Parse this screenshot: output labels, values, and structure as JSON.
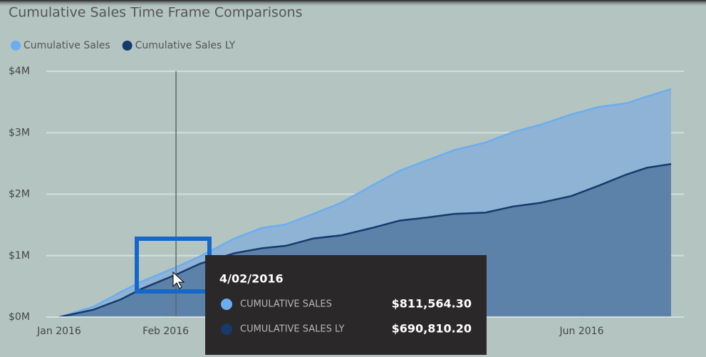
{
  "chart_data": {
    "type": "area",
    "title": "Cumulative Sales Time Frame Comparisons",
    "x": [
      "2016-01-01",
      "2016-01-11",
      "2016-01-19",
      "2016-01-25",
      "2016-02-04",
      "2016-02-11",
      "2016-02-21",
      "2016-02-29",
      "2016-03-07",
      "2016-03-15",
      "2016-03-23",
      "2016-04-01",
      "2016-04-09",
      "2016-04-17",
      "2016-04-25",
      "2016-05-04",
      "2016-05-12",
      "2016-05-20",
      "2016-05-29",
      "2016-06-06",
      "2016-06-14",
      "2016-06-20",
      "2016-06-27"
    ],
    "series": [
      {
        "name": "Cumulative Sales",
        "color": "#6aaef0",
        "fill": "#8fb3d4",
        "values": [
          0,
          170000,
          410000,
          580000,
          811564.3,
          990000,
          1280000,
          1450000,
          1510000,
          1680000,
          1860000,
          2140000,
          2380000,
          2550000,
          2720000,
          2840000,
          3010000,
          3130000,
          3300000,
          3420000,
          3480000,
          3590000,
          3710000
        ]
      },
      {
        "name": "Cumulative Sales LY",
        "color": "#163a6a",
        "fill": "#5d82aa",
        "values": [
          0,
          120000,
          290000,
          460000,
          690810.2,
          870000,
          1040000,
          1120000,
          1160000,
          1280000,
          1330000,
          1450000,
          1570000,
          1620000,
          1680000,
          1700000,
          1800000,
          1860000,
          1970000,
          2140000,
          2320000,
          2430000,
          2490000
        ]
      }
    ],
    "xlim": [
      "2016-01-01",
      "2016-06-27"
    ],
    "xticks": [
      {
        "value": "2016-01-01",
        "label": "Jan 2016"
      },
      {
        "value": "2016-02-01",
        "label": "Feb 2016"
      },
      {
        "value": "2016-06-01",
        "label": "Jun 2016"
      }
    ],
    "ylim": [
      0,
      4000000
    ],
    "yticks": [
      {
        "value": 0,
        "label": "$0M"
      },
      {
        "value": 1000000,
        "label": "$1M"
      },
      {
        "value": 2000000,
        "label": "$2M"
      },
      {
        "value": 3000000,
        "label": "$3M"
      },
      {
        "value": 4000000,
        "label": "$4M"
      }
    ],
    "grid": true,
    "tooltip": {
      "title": "4/02/2016",
      "rows": [
        {
          "name": "CUMULATIVE SALES",
          "value": "$811,564.30"
        },
        {
          "name": "CUMULATIVE SALES LY",
          "value": "$690,810.20"
        }
      ]
    }
  }
}
